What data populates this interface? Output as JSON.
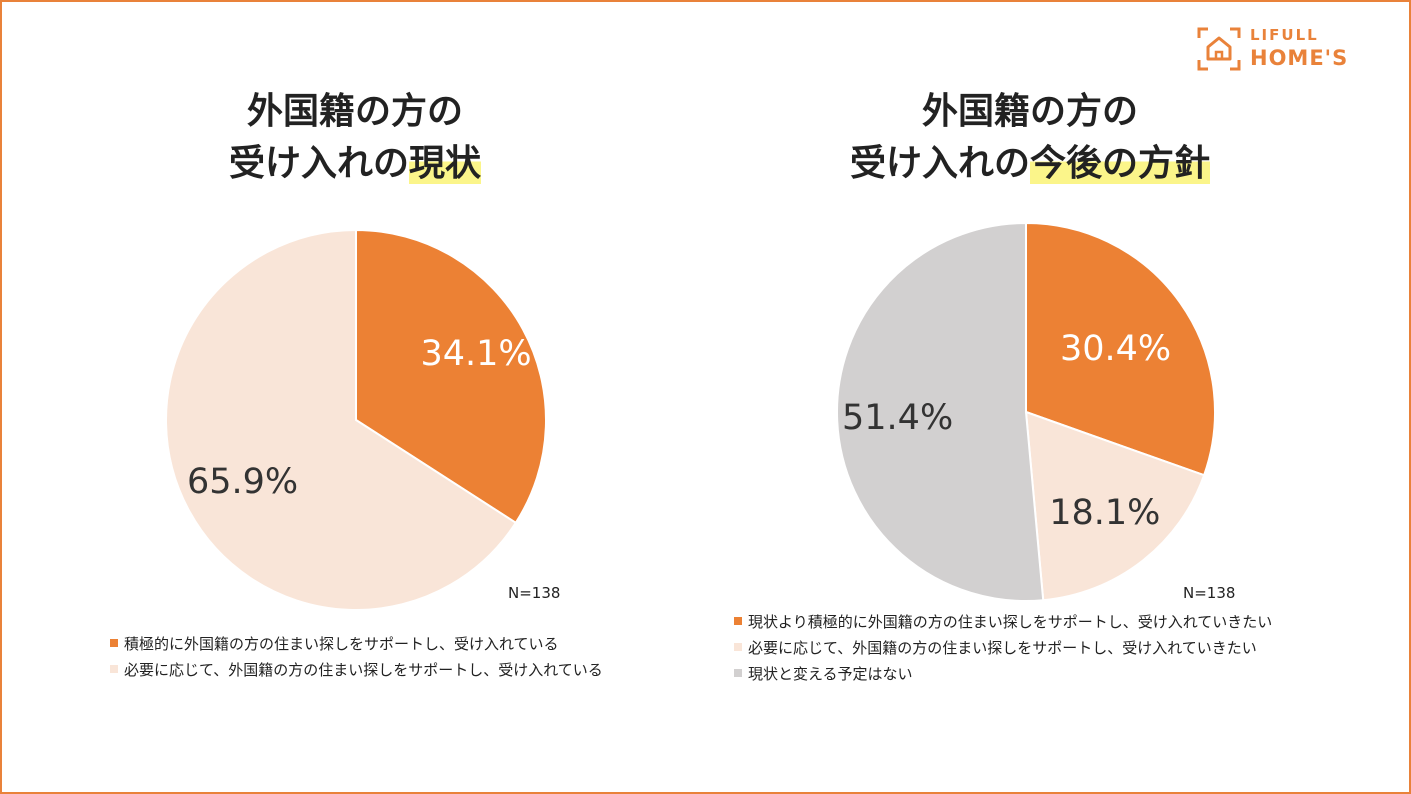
{
  "logo": {
    "line1": "LIFULL",
    "line2": "HOME'S"
  },
  "colors": {
    "accent": "#e9823a",
    "orange": "#ec8134",
    "peach": "#f9e5d8",
    "gray": "#d2d0d0",
    "highlight": "#fbf58a"
  },
  "chart_data": [
    {
      "type": "pie",
      "title_line1": "外国籍の方の",
      "title_line2_plain": "受け入れの",
      "title_line2_highlight": "現状",
      "n_label": "N=138",
      "slices": [
        {
          "label": "積極的に外国籍の方の住まい探しをサポートし、受け入れている",
          "value": 34.1,
          "display": "34.1%",
          "color": "#ec8134"
        },
        {
          "label": "必要に応じて、外国籍の方の住まい探しをサポートし、受け入れている",
          "value": 65.9,
          "display": "65.9%",
          "color": "#f9e5d8"
        }
      ]
    },
    {
      "type": "pie",
      "title_line1": "外国籍の方の",
      "title_line2_plain": "受け入れの",
      "title_line2_highlight": "今後の方針",
      "n_label": "N=138",
      "slices": [
        {
          "label": "現状より積極的に外国籍の方の住まい探しをサポートし、受け入れていきたい",
          "value": 30.4,
          "display": "30.4%",
          "color": "#ec8134"
        },
        {
          "label": "必要に応じて、外国籍の方の住まい探しをサポートし、受け入れていきたい",
          "value": 18.1,
          "display": "18.1%",
          "color": "#f9e5d8"
        },
        {
          "label": "現状と変える予定はない",
          "value": 51.4,
          "display": "51.4%",
          "color": "#d2d0d0"
        }
      ]
    }
  ]
}
